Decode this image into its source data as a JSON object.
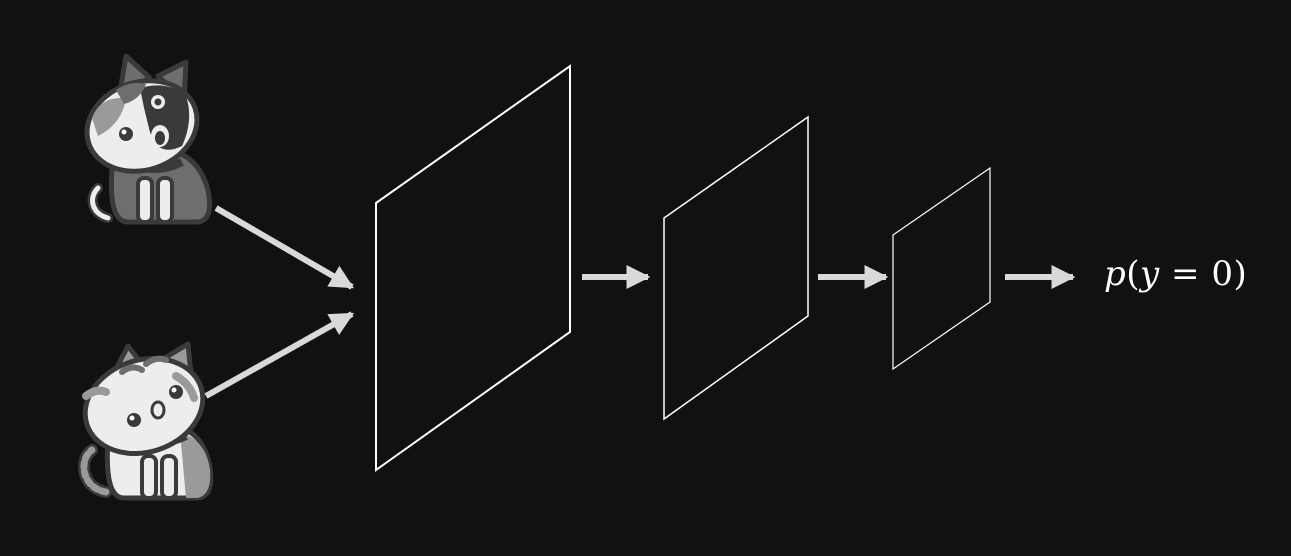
{
  "output": {
    "p": "p",
    "open": "(",
    "y": "y",
    "rest": " = 0)"
  },
  "colors": {
    "background": "#111111",
    "layer_stroke": "#ffffff",
    "arrow": "#d9d9d9",
    "cat_outline": "#3a3a3a",
    "cat_light": "#ededed",
    "cat_mid": "#9a9a9a",
    "cat_dark": "#6e6e6e"
  },
  "icons": [
    "cat-icon-top",
    "cat-icon-bottom"
  ]
}
